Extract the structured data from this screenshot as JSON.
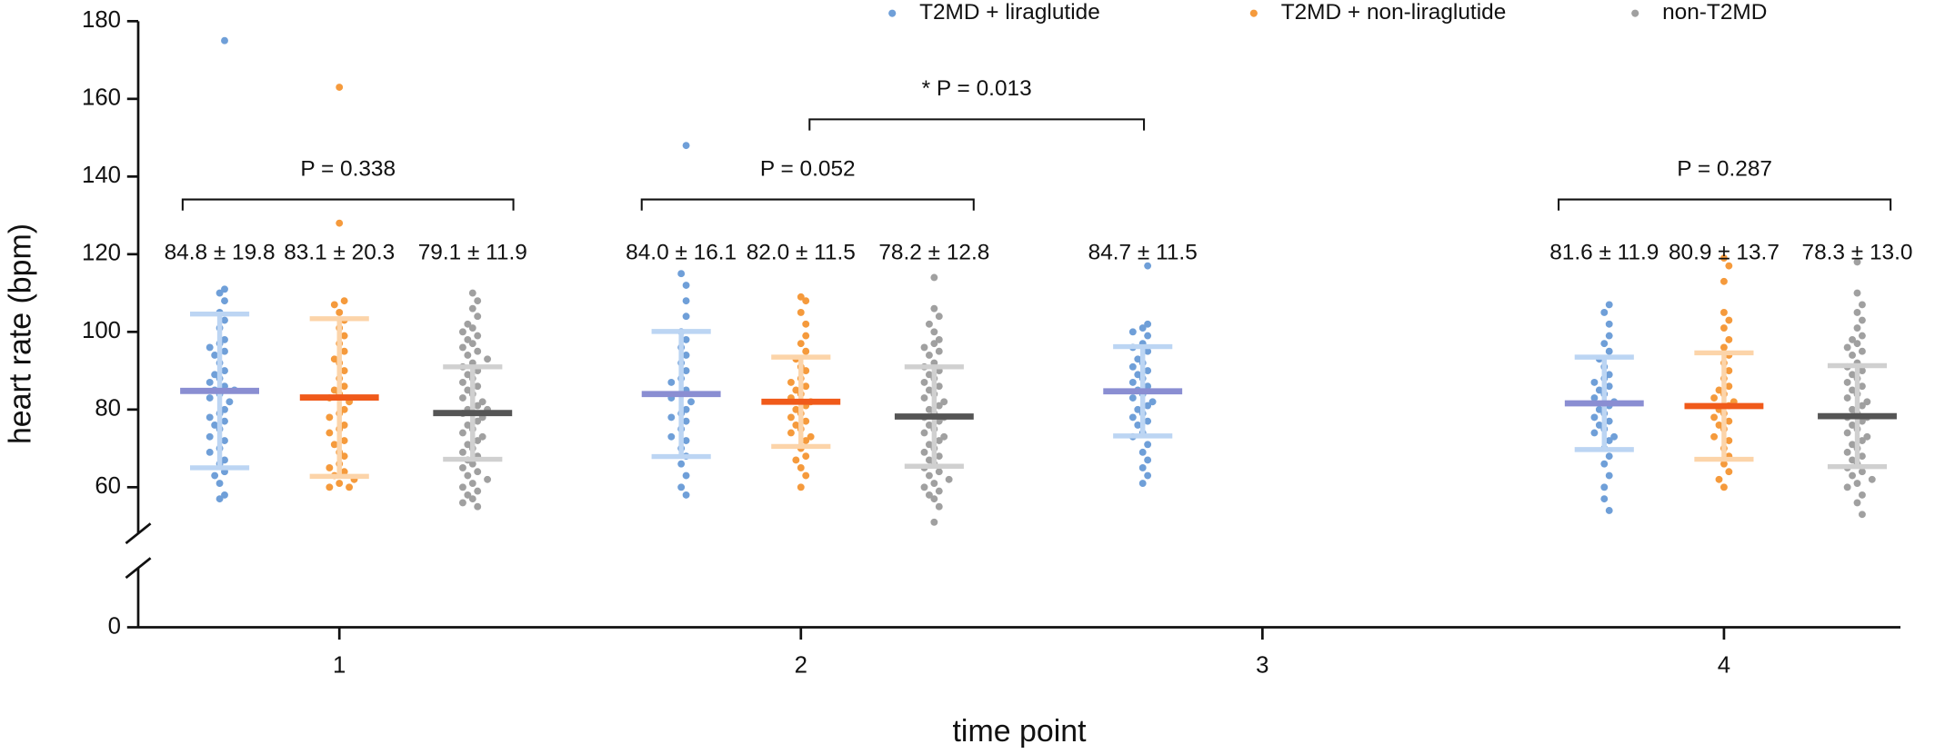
{
  "chart_data": {
    "type": "dotplot",
    "xlabel": "time point",
    "ylabel": "heart rate (bpm)",
    "categories": [
      "1",
      "2",
      "3",
      "4"
    ],
    "ylim": [
      0,
      180
    ],
    "yticks": [
      0,
      60,
      80,
      100,
      120,
      140,
      160,
      180
    ],
    "y_axis_break": [
      14,
      50
    ],
    "legend": "top-right",
    "series": [
      {
        "name": "T2MD + liraglutide",
        "color": "#6f9fd8",
        "mean_color": "#8a8ed2",
        "sd_color": "#bcd5f3",
        "values": [
          84.8,
          84.0,
          84.7,
          81.6
        ],
        "sd": [
          19.8,
          16.1,
          11.5,
          11.9
        ],
        "value_labels": [
          "84.8 ± 19.8",
          "84.0 ± 16.1",
          "84.7 ± 11.5",
          "81.6 ± 11.9"
        ],
        "points": [
          [
            175,
            111,
            110,
            108,
            105,
            103,
            101,
            98,
            97,
            96,
            95,
            94,
            92,
            90,
            89,
            88,
            87,
            86,
            85,
            85,
            84,
            83,
            82,
            80,
            79,
            78,
            77,
            76,
            75,
            73,
            72,
            70,
            69,
            67,
            66,
            64,
            63,
            61,
            58,
            57
          ],
          [
            148,
            115,
            112,
            108,
            104,
            100,
            98,
            96,
            94,
            92,
            90,
            88,
            87,
            85,
            84,
            83,
            82,
            80,
            79,
            78,
            77,
            75,
            73,
            72,
            70,
            68,
            66,
            63,
            60,
            58
          ],
          [
            117,
            102,
            101,
            100,
            99,
            97,
            96,
            95,
            93,
            92,
            91,
            90,
            89,
            88,
            87,
            86,
            85,
            84,
            83,
            82,
            81,
            80,
            79,
            78,
            77,
            76,
            74,
            73,
            71,
            69,
            67,
            65,
            63,
            61
          ],
          [
            107,
            105,
            102,
            99,
            97,
            95,
            93,
            91,
            89,
            88,
            87,
            86,
            85,
            84,
            83,
            82,
            81,
            80,
            79,
            78,
            77,
            76,
            75,
            74,
            73,
            72,
            70,
            68,
            66,
            63,
            60,
            57,
            54
          ]
        ]
      },
      {
        "name": "T2MD + non-liraglutide",
        "color": "#f59a3c",
        "mean_color": "#f05a1a",
        "sd_color": "#fcd4a9",
        "values": [
          83.1,
          82.0,
          null,
          80.9
        ],
        "sd": [
          20.3,
          11.5,
          null,
          13.7
        ],
        "value_labels": [
          "83.1 ± 20.3",
          "82.0 ± 11.5",
          null,
          "80.9 ± 13.7"
        ],
        "points": [
          [
            163,
            128,
            108,
            107,
            105,
            103,
            101,
            99,
            97,
            95,
            93,
            92,
            90,
            88,
            86,
            85,
            84,
            83,
            82,
            80,
            79,
            78,
            76,
            75,
            74,
            72,
            71,
            69,
            68,
            66,
            65,
            64,
            63,
            62,
            61,
            60,
            60
          ],
          [
            109,
            108,
            105,
            102,
            99,
            97,
            95,
            93,
            91,
            90,
            88,
            87,
            86,
            85,
            84,
            83,
            82,
            81,
            80,
            79,
            78,
            77,
            76,
            75,
            74,
            73,
            72,
            70,
            68,
            67,
            65,
            63,
            60
          ],
          null,
          [
            119,
            117,
            113,
            105,
            103,
            101,
            98,
            96,
            94,
            92,
            90,
            88,
            86,
            85,
            84,
            83,
            82,
            81,
            80,
            79,
            78,
            77,
            76,
            75,
            73,
            72,
            70,
            68,
            66,
            64,
            62,
            60
          ]
        ]
      },
      {
        "name": "non-T2MD",
        "color": "#a0a0a0",
        "mean_color": "#555555",
        "sd_color": "#d0d0d0",
        "values": [
          79.1,
          78.2,
          null,
          78.3
        ],
        "sd": [
          11.9,
          12.8,
          null,
          13.0
        ],
        "value_labels": [
          "79.1 ± 11.9",
          "78.2 ± 12.8",
          null,
          "78.3 ± 13.0"
        ],
        "points": [
          [
            110,
            108,
            106,
            104,
            102,
            101,
            100,
            99,
            98,
            97,
            96,
            95,
            94,
            93,
            92,
            91,
            90,
            89,
            88,
            87,
            86,
            85,
            84,
            83,
            82,
            81,
            80,
            80,
            79,
            79,
            78,
            77,
            76,
            75,
            74,
            73,
            72,
            71,
            70,
            69,
            68,
            67,
            66,
            65,
            64,
            63,
            62,
            61,
            60,
            59,
            58,
            57,
            56,
            55
          ],
          [
            114,
            106,
            104,
            102,
            100,
            98,
            97,
            96,
            95,
            94,
            92,
            91,
            90,
            89,
            88,
            87,
            86,
            85,
            84,
            83,
            82,
            81,
            80,
            79,
            78,
            78,
            77,
            76,
            75,
            74,
            73,
            72,
            71,
            70,
            69,
            68,
            67,
            66,
            65,
            64,
            63,
            62,
            61,
            60,
            59,
            58,
            57,
            55,
            51
          ],
          null,
          [
            118,
            110,
            107,
            105,
            103,
            101,
            99,
            98,
            97,
            96,
            95,
            94,
            92,
            91,
            90,
            89,
            88,
            87,
            86,
            85,
            84,
            83,
            82,
            81,
            80,
            79,
            78,
            78,
            77,
            76,
            75,
            74,
            73,
            72,
            71,
            70,
            69,
            68,
            67,
            66,
            65,
            64,
            63,
            62,
            61,
            60,
            58,
            56,
            53
          ]
        ]
      }
    ],
    "comparisons": [
      {
        "text": "P = 0.338"
      },
      {
        "text": "P = 0.052"
      },
      {
        "text": "* P = 0.013"
      },
      {
        "text": "P = 0.287"
      }
    ]
  }
}
